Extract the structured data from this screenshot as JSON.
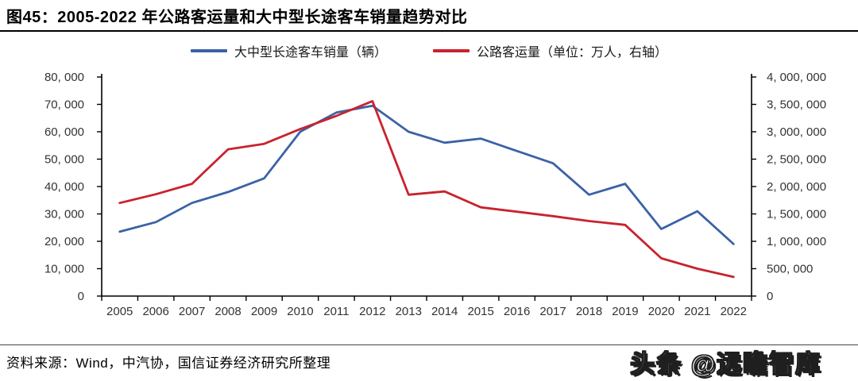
{
  "header": {
    "title": "图45：2005-2022 年公路客运量和大中型长途客车销量趋势对比"
  },
  "chart_data": {
    "type": "line",
    "title": "2005-2022 年公路客运量和大中型长途客车销量趋势对比",
    "categories": [
      "2005",
      "2006",
      "2007",
      "2008",
      "2009",
      "2010",
      "2011",
      "2012",
      "2013",
      "2014",
      "2015",
      "2016",
      "2017",
      "2018",
      "2019",
      "2020",
      "2021",
      "2022"
    ],
    "series": [
      {
        "name": "大中型长途客车销量（辆）",
        "axis": "left",
        "color": "#3A62A6",
        "values": [
          23500,
          27000,
          34000,
          38000,
          43000,
          60000,
          67000,
          69500,
          60000,
          56000,
          57500,
          53000,
          48500,
          37000,
          41000,
          24500,
          31000,
          19000
        ]
      },
      {
        "name": "公路客运量（单位：万人，右轴）",
        "axis": "right",
        "color": "#C8232D",
        "values": [
          1700000,
          1860000,
          2050000,
          2680000,
          2780000,
          3050000,
          3290000,
          3560000,
          1850000,
          1910000,
          1620000,
          1540000,
          1460000,
          1370000,
          1300000,
          690000,
          500000,
          350000
        ]
      }
    ],
    "left_axis": {
      "min": 0,
      "max": 80000,
      "step": 10000,
      "tick_labels": [
        "0",
        "10, 000",
        "20, 000",
        "30, 000",
        "40, 000",
        "50, 000",
        "60, 000",
        "70, 000",
        "80, 000"
      ]
    },
    "right_axis": {
      "min": 0,
      "max": 4000000,
      "step": 500000,
      "tick_labels": [
        "0",
        "500, 000",
        "1, 000, 000",
        "1, 500, 000",
        "2, 000, 000",
        "2, 500, 000",
        "3, 000, 000",
        "3, 500, 000",
        "4, 000, 000"
      ]
    },
    "legend_position": "top",
    "grid": false
  },
  "footer": {
    "source": "资料来源：Wind，中汽协，国信证券经济研究所整理",
    "watermark": "头条 @远瞻智库"
  }
}
